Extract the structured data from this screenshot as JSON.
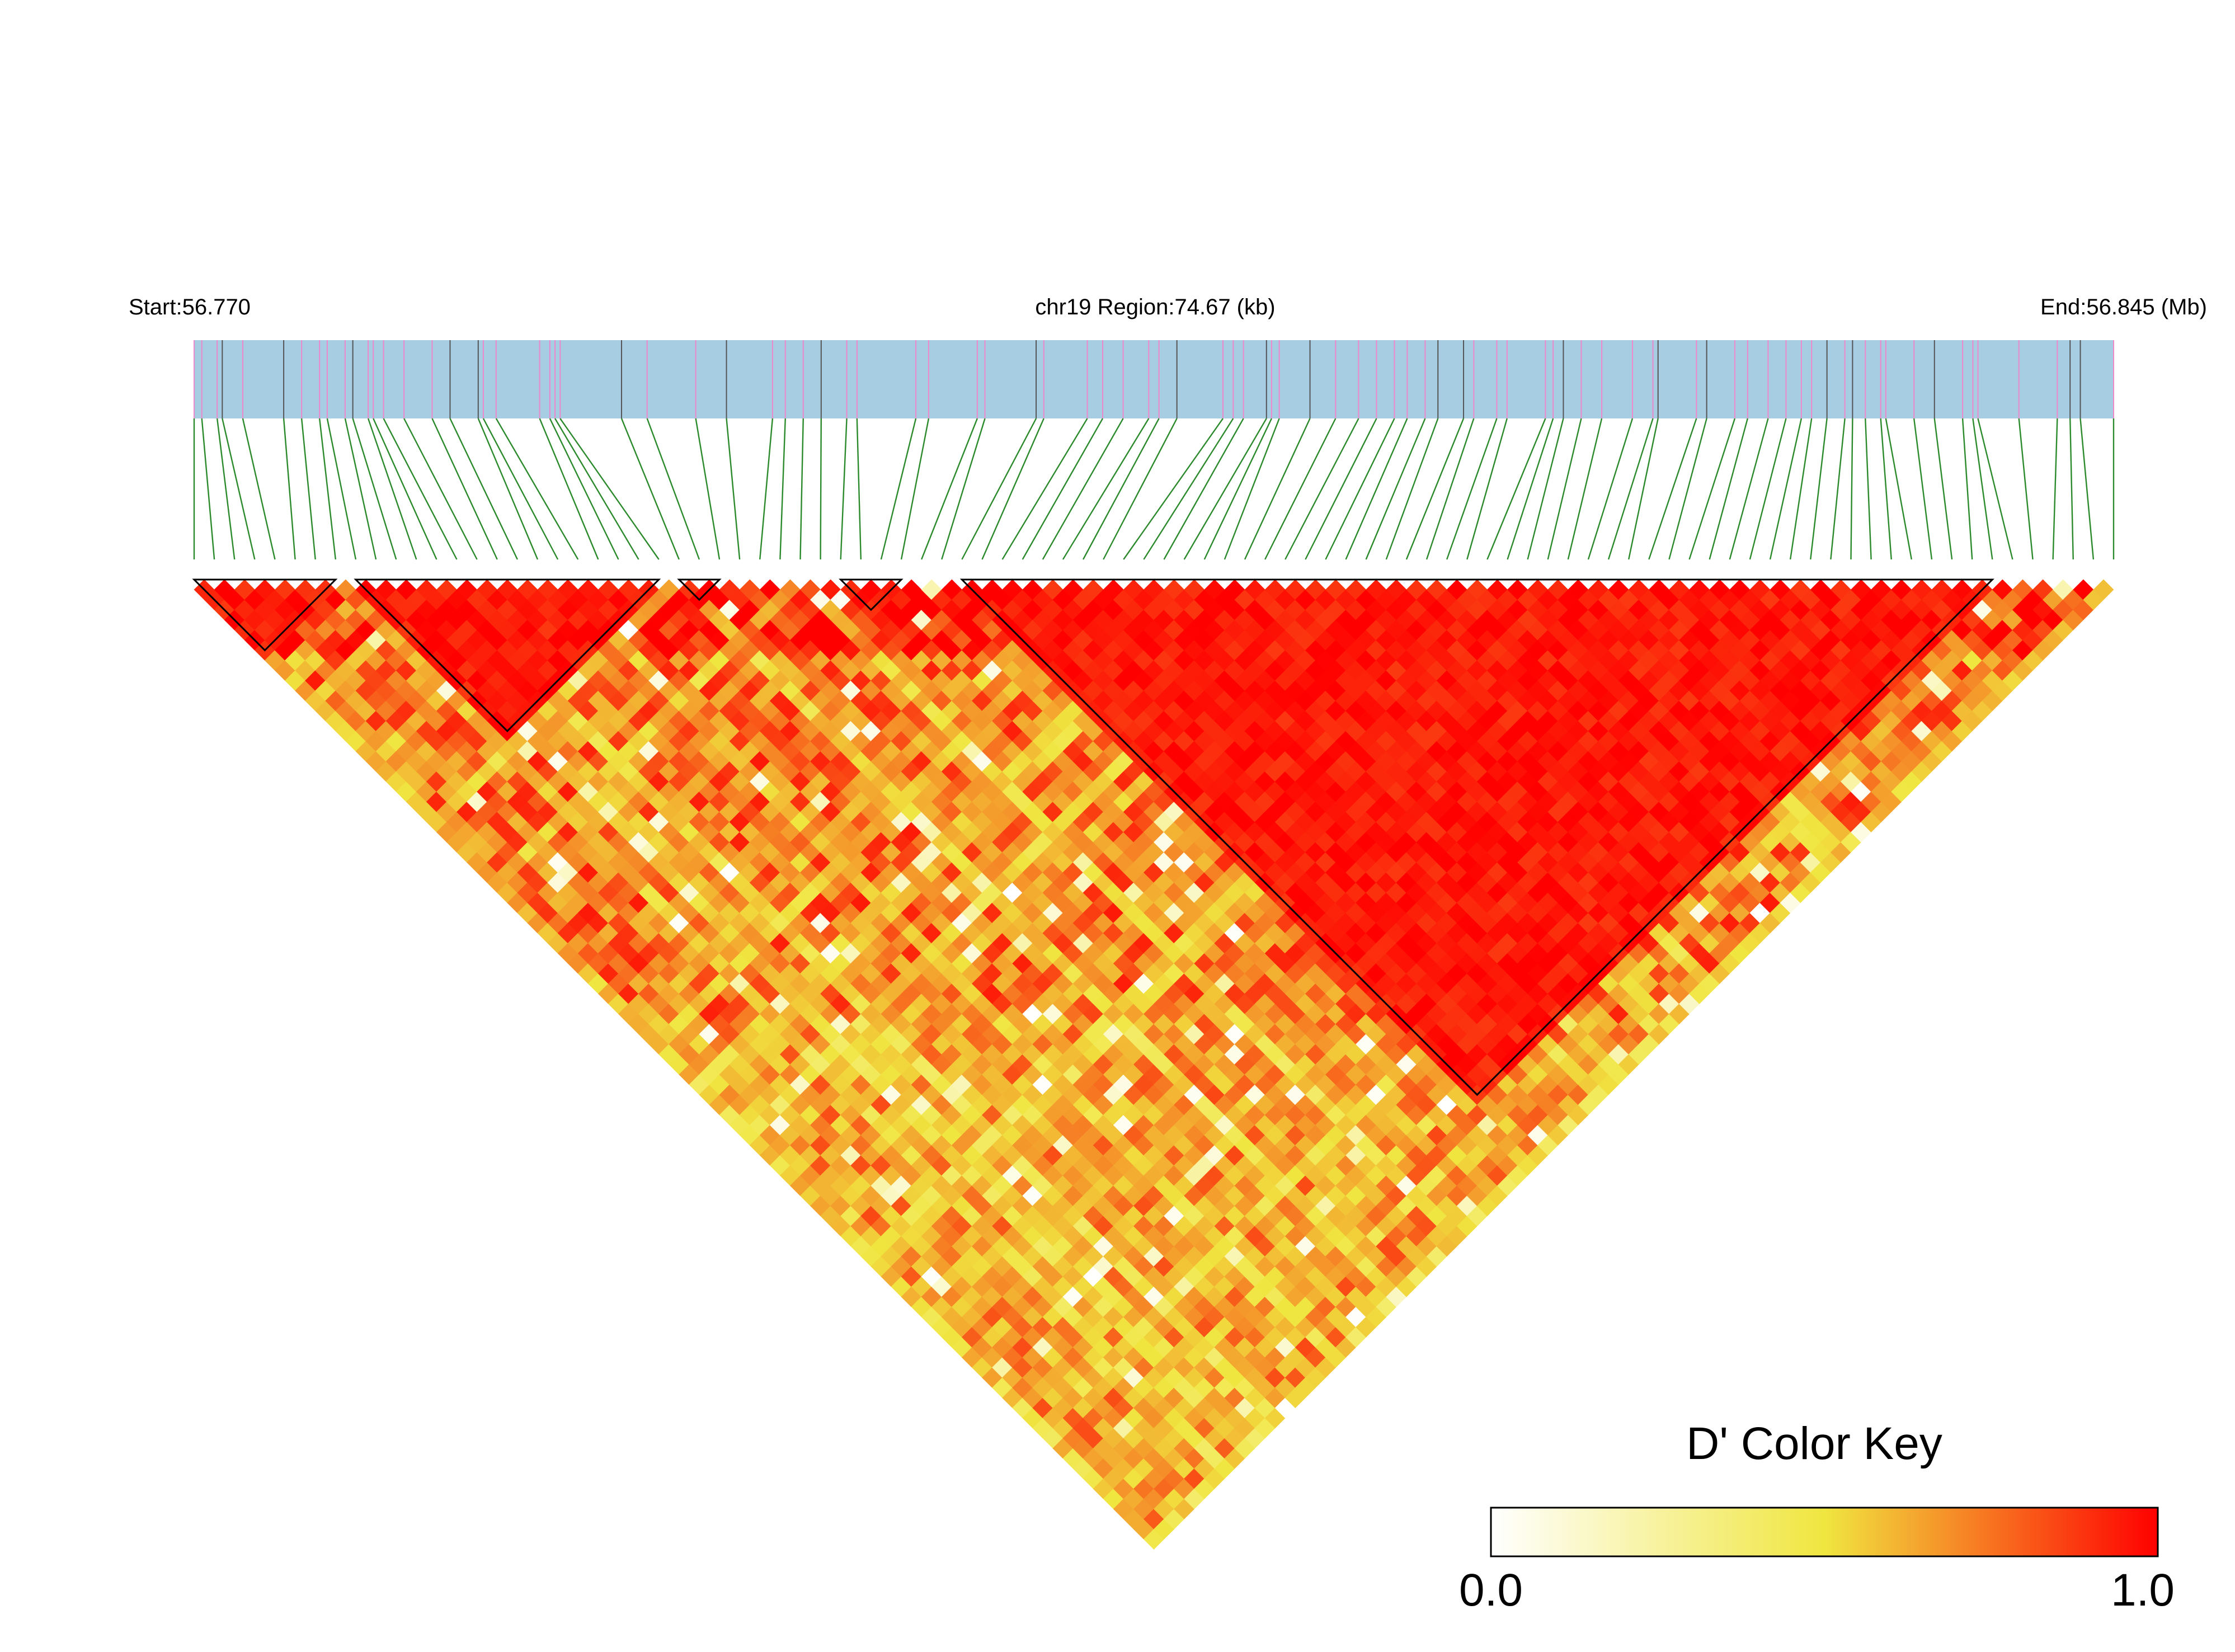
{
  "header": {
    "start_label": "Start:56.770",
    "region_label": "chr19 Region:74.67 (kb)",
    "end_label": "End:56.845 (Mb)"
  },
  "colors": {
    "track_fill": "#a6cde2",
    "snp_line_pink": "#ee88cc",
    "snp_line_gray": "#555555",
    "connector_green": "#2b8a2b",
    "block_outline": "#000000",
    "key_low": "#ffffff",
    "key_mid": "#f0e640",
    "key_high": "#ff0000"
  },
  "legend": {
    "title": "D' Color Key",
    "min_label": "0.0",
    "max_label": "1.0"
  },
  "chart_data": {
    "type": "heatmap",
    "metric": "D'",
    "chromosome": "chr19",
    "region_start_mb": 56.77,
    "region_end_mb": 56.845,
    "region_kb": 74.67,
    "n_snps": 96,
    "value_range": [
      0.0,
      1.0
    ],
    "snp_positions_mb": [
      56.77,
      56.7703,
      56.7709,
      56.7711,
      56.7719,
      56.7735,
      56.7742,
      56.7749,
      56.7752,
      56.7759,
      56.7762,
      56.7768,
      56.777,
      56.7774,
      56.7782,
      56.7793,
      56.78,
      56.7811,
      56.7813,
      56.7818,
      56.7835,
      56.7839,
      56.7841,
      56.7843,
      56.7867,
      56.7877,
      56.7896,
      56.7908,
      56.7926,
      56.7931,
      56.7938,
      56.7945,
      56.7955,
      56.7959,
      56.7982,
      56.7987,
      56.8006,
      56.8009,
      56.8029,
      56.8032,
      56.8049,
      56.8055,
      56.8063,
      56.8073,
      56.8077,
      56.8084,
      56.8102,
      56.8106,
      56.811,
      56.8119,
      56.8121,
      56.8124,
      56.8136,
      56.8146,
      56.8155,
      56.8162,
      56.8169,
      56.8174,
      56.8181,
      56.8186,
      56.8196,
      56.82,
      56.8209,
      56.8213,
      56.8228,
      56.8231,
      56.8235,
      56.8242,
      56.825,
      56.8262,
      56.827,
      56.8272,
      56.8287,
      56.8291,
      56.8302,
      56.8307,
      56.8315,
      56.8322,
      56.8328,
      56.8332,
      56.8338,
      56.8345,
      56.8348,
      56.8353,
      56.8359,
      56.8361,
      56.8372,
      56.838,
      56.8391,
      56.8395,
      56.8397,
      56.8413,
      56.8428,
      56.8433,
      56.8437,
      56.845
    ],
    "ld_blocks_snp_index": [
      [
        0,
        7
      ],
      [
        8,
        23
      ],
      [
        24,
        26
      ],
      [
        32,
        35
      ],
      [
        38,
        89
      ]
    ],
    "block_mean_dprime": 0.97,
    "background_dprime_profile": {
      "near_diagonal": 0.97,
      "mid_range": 0.78,
      "long_range": 0.7
    }
  }
}
